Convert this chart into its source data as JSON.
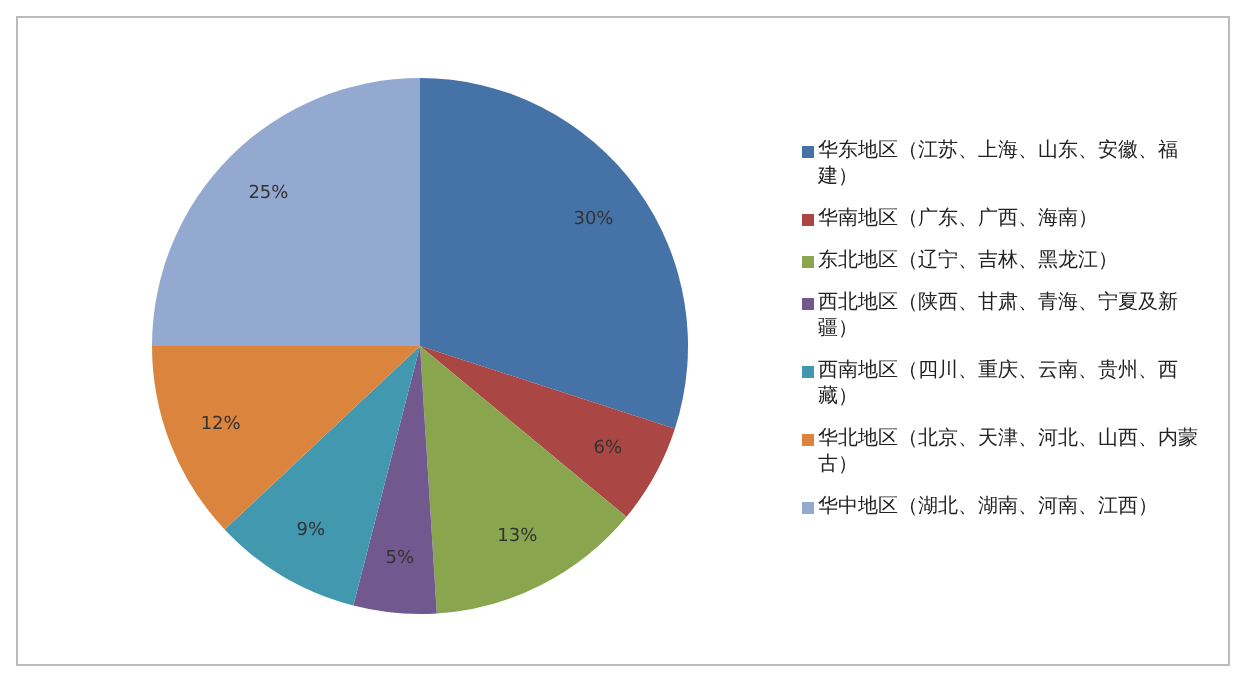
{
  "chart_data": {
    "type": "pie",
    "categories": [
      "华东地区（江苏、上海、山东、安徽、福建）",
      "华南地区（广东、广西、海南）",
      "东北地区（辽宁、吉林、黑龙江）",
      "西北地区（陕西、甘肃、青海、宁夏及新疆）",
      "西南地区（四川、重庆、云南、贵州、西藏）",
      "华北地区（北京、天津、河北、山西、内蒙古）",
      "华中地区（湖北、湖南、河南、江西）"
    ],
    "values": [
      30,
      6,
      13,
      5,
      9,
      12,
      25
    ],
    "colors": [
      "#4572a7",
      "#aa4643",
      "#89a54e",
      "#71588f",
      "#4198af",
      "#db843d",
      "#93a9cf"
    ],
    "value_labels": [
      "30%",
      "6%",
      "13%",
      "5%",
      "9%",
      "12%",
      "25%"
    ],
    "legend": "right"
  }
}
